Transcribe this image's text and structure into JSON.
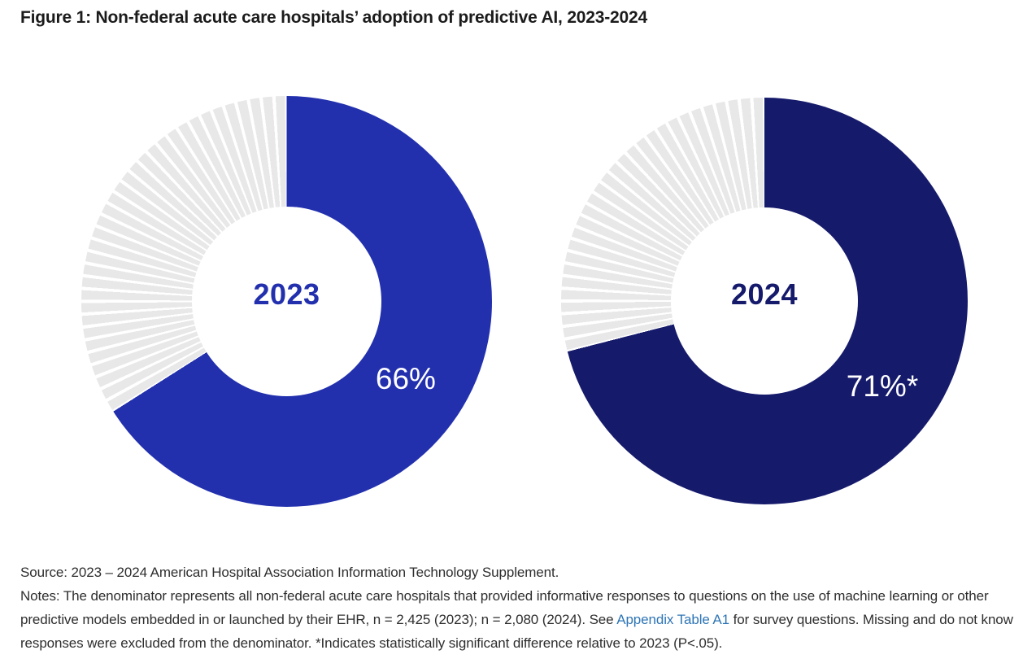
{
  "figure": {
    "title": "Figure 1: Non-federal acute care hospitals’ adoption of predictive AI, 2023-2024"
  },
  "chart_data": {
    "type": "pie",
    "variant": "donut-pair",
    "title": "Figure 1: Non-federal acute care hospitals’ adoption of predictive AI, 2023-2024",
    "direction": "clockwise",
    "start_angle_deg": 0,
    "hole_ratio": 0.46,
    "legend": "none",
    "remainder_style": "light-gray 1% tick segments with white gaps",
    "series": [
      {
        "name": "2023",
        "value_pct": 66,
        "value_label": "66%",
        "fill_color": "#2230ae",
        "remainder_pct": 34,
        "remainder_color": "#e8e8e8"
      },
      {
        "name": "2024",
        "value_pct": 71,
        "value_label": "71%*",
        "fill_color": "#151a6b",
        "remainder_pct": 29,
        "remainder_color": "#e8e8e8"
      }
    ]
  },
  "footnote": {
    "source": "Source: 2023 – 2024 American Hospital Association Information Technology Supplement.",
    "notes_line1": "Notes: The denominator represents all non-federal acute care hospitals that provided informative responses to questions on the use of machine learning or other",
    "notes_line2_before_link": "predictive models embedded in or launched by their EHR, n = 2,425 (2023); n = 2,080 (2024). See ",
    "appendix_link_text": "Appendix Table A1",
    "notes_line2_after_link": " for survey questions. Missing and do not know",
    "notes_line3": "responses were excluded from the denominator. *Indicates statistically significant difference relative to 2023 (P<.05).",
    "link_color": "#2e75b6"
  }
}
